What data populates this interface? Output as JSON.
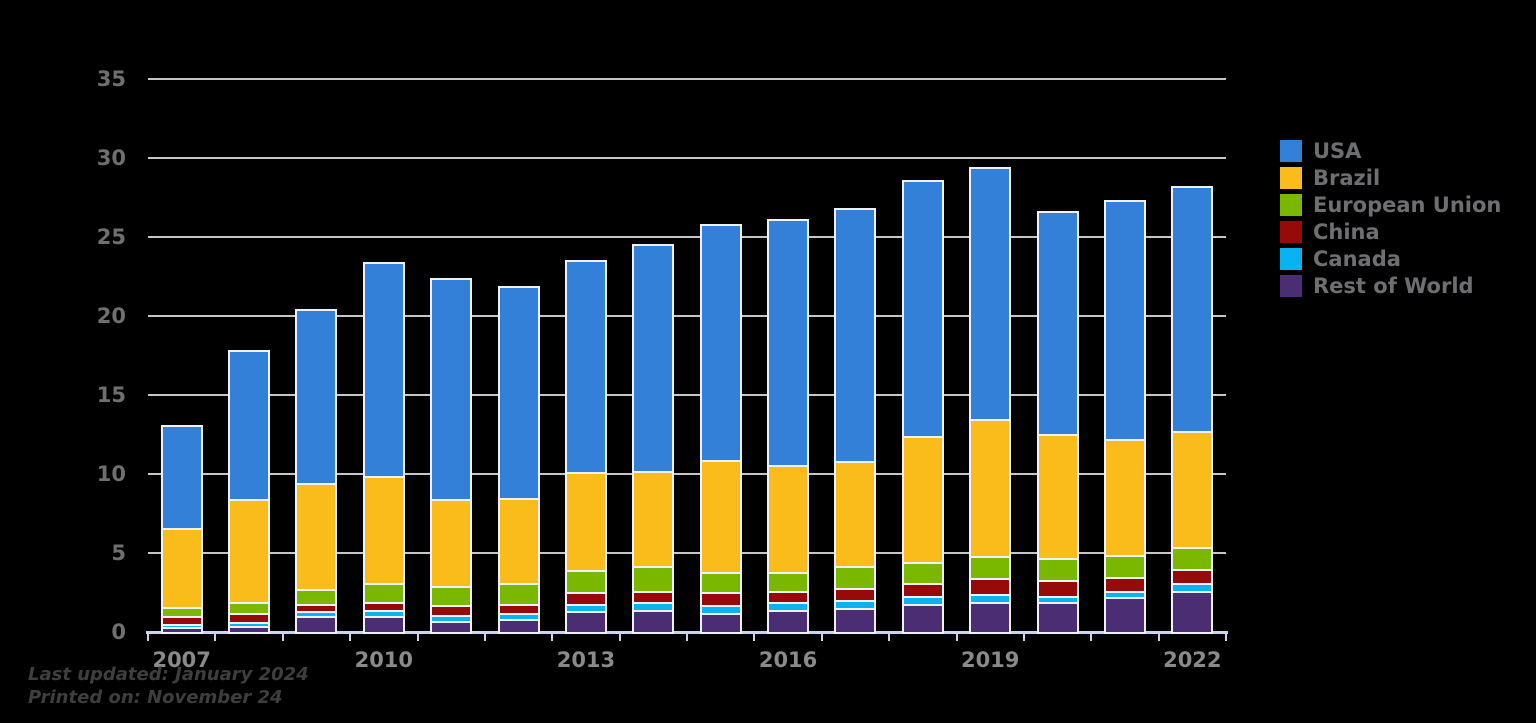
{
  "chart_data": {
    "type": "bar",
    "stacked": true,
    "title": "",
    "xlabel": "",
    "ylabel": "",
    "categories": [
      "2007",
      "2008",
      "2009",
      "2010",
      "2011",
      "2012",
      "2013",
      "2014",
      "2015",
      "2016",
      "2017",
      "2018",
      "2019",
      "2020",
      "2021",
      "2022"
    ],
    "x_shown_tick_labels": [
      "2007",
      "2010",
      "2013",
      "2016",
      "2019",
      "2022"
    ],
    "series": [
      {
        "name": "USA",
        "color": "#3380D8",
        "values": [
          6.4,
          9.3,
          10.9,
          13.4,
          13.9,
          13.3,
          13.3,
          14.2,
          14.8,
          15.4,
          15.9,
          16.1,
          15.8,
          14.0,
          15.0,
          15.4
        ]
      },
      {
        "name": "Brazil",
        "color": "#F9BC1A",
        "values": [
          5.0,
          6.5,
          6.7,
          6.8,
          5.5,
          5.4,
          6.2,
          6.0,
          7.1,
          6.8,
          6.6,
          8.0,
          8.7,
          7.8,
          7.3,
          7.3
        ]
      },
      {
        "name": "European Union",
        "color": "#7AB800",
        "values": [
          0.6,
          0.7,
          0.9,
          1.2,
          1.2,
          1.3,
          1.4,
          1.6,
          1.3,
          1.2,
          1.4,
          1.3,
          1.4,
          1.4,
          1.4,
          1.4
        ]
      },
      {
        "name": "China",
        "color": "#970A0A",
        "values": [
          0.5,
          0.6,
          0.5,
          0.5,
          0.6,
          0.6,
          0.7,
          0.7,
          0.8,
          0.7,
          0.8,
          0.8,
          1.0,
          1.0,
          0.9,
          0.9
        ]
      },
      {
        "name": "Canada",
        "color": "#09B3F2",
        "values": [
          0.2,
          0.2,
          0.3,
          0.4,
          0.4,
          0.4,
          0.5,
          0.5,
          0.5,
          0.5,
          0.5,
          0.5,
          0.5,
          0.4,
          0.4,
          0.5
        ]
      },
      {
        "name": "Rest of World",
        "color": "#4A2D73",
        "values": [
          0.3,
          0.4,
          1.0,
          1.0,
          0.7,
          0.8,
          1.3,
          1.4,
          1.2,
          1.4,
          1.5,
          1.8,
          1.9,
          1.9,
          2.2,
          2.6
        ]
      }
    ],
    "stack_order_bottom_to_top": [
      "Rest of World",
      "Canada",
      "China",
      "European Union",
      "Brazil",
      "USA"
    ],
    "totals": [
      13.0,
      17.7,
      20.3,
      23.3,
      22.3,
      21.8,
      23.4,
      24.4,
      25.7,
      26.0,
      26.7,
      28.5,
      29.3,
      26.5,
      27.2,
      28.1
    ],
    "ylim": [
      0,
      35
    ],
    "yticks": [
      0,
      5,
      10,
      15,
      20,
      25,
      30,
      35
    ],
    "grid": true,
    "legend_position": "right"
  },
  "legend": {
    "items": [
      "USA",
      "Brazil",
      "European Union",
      "China",
      "Canada",
      "Rest of World"
    ]
  },
  "footer": {
    "last_updated": "Last updated: January 2024",
    "printed_on": "Printed on: November 24"
  },
  "colors": {
    "background": "#000000",
    "gridline": "#C6C6C6",
    "axis_line": "#CBD4EA",
    "bar_outline": "#EDF1F9",
    "y_tick_label": "#6F6F6F",
    "x_tick_label": "#8A8A8A",
    "legend_text": "#6E6F71",
    "footnote_text": "#3E3E3E"
  }
}
